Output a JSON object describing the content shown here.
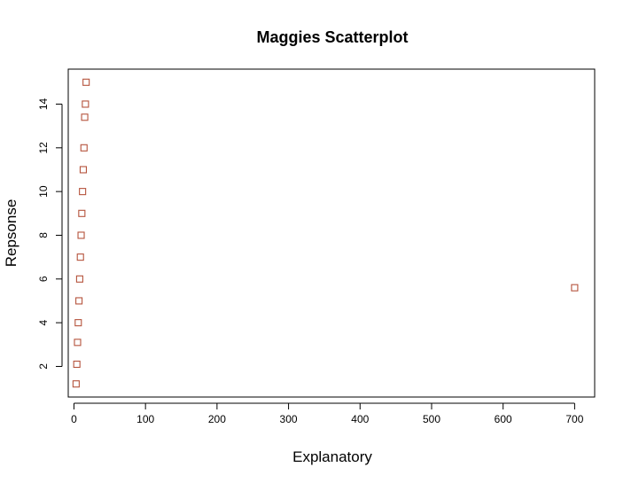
{
  "chart_data": {
    "type": "scatter",
    "title": "Maggies Scatterplot",
    "xlabel": "Explanatory",
    "ylabel": "Repsonse",
    "xlim": [
      -8,
      728
    ],
    "ylim": [
      0.6,
      15.6
    ],
    "xticks": [
      "0",
      "100",
      "200",
      "300",
      "400",
      "500",
      "600",
      "700"
    ],
    "yticks": [
      "2",
      "4",
      "6",
      "8",
      "10",
      "12",
      "14"
    ],
    "grid": false,
    "legend": "none",
    "marker": "open-square",
    "marker_color": "#b5533c",
    "series": [
      {
        "points": [
          [
            3,
            1.2
          ],
          [
            4,
            2.1
          ],
          [
            5,
            3.1
          ],
          [
            6,
            4.0
          ],
          [
            7,
            5.0
          ],
          [
            8,
            6.0
          ],
          [
            9,
            7.0
          ],
          [
            10,
            8.0
          ],
          [
            11,
            9.0
          ],
          [
            12,
            10.0
          ],
          [
            13,
            11.0
          ],
          [
            14,
            12.0
          ],
          [
            15,
            13.4
          ],
          [
            16,
            14.0
          ],
          [
            17,
            15.0
          ],
          [
            700,
            5.6
          ]
        ]
      }
    ]
  }
}
